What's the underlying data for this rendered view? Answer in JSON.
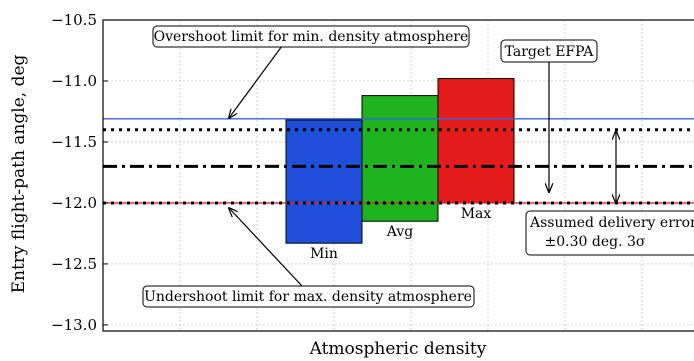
{
  "chart_data": {
    "type": "bar",
    "title": "",
    "xlabel": "Atmospheric density",
    "ylabel": "Entry flight-path angle, deg",
    "ylim": [
      -13.05,
      -10.5
    ],
    "yticks": [
      -10.5,
      -11.0,
      -11.5,
      -12.0,
      -12.5,
      -13.0
    ],
    "ytick_labels": [
      "−10.5",
      "−11.0",
      "−11.5",
      "−12.0",
      "−12.5",
      "−13.0"
    ],
    "grid": true,
    "bars": [
      {
        "name": "Min",
        "bottom": -12.33,
        "top": -11.32,
        "color": "#1f4fd8"
      },
      {
        "name": "Avg",
        "bottom": -12.15,
        "top": -11.12,
        "color": "#1fb31f"
      },
      {
        "name": "Max",
        "bottom": -12.0,
        "top": -10.98,
        "color": "#e61c1c"
      }
    ],
    "reference_lines": [
      {
        "id": "overshoot",
        "y": -11.31,
        "style": "solid",
        "color": "#3a62d8"
      },
      {
        "id": "upper_dispersion",
        "y": -11.4,
        "style": "dotted",
        "color": "#000000"
      },
      {
        "id": "target",
        "y": -11.7,
        "style": "dashdot",
        "color": "#000000"
      },
      {
        "id": "undershoot",
        "y": -12.0,
        "style": "solid",
        "color": "#d62728"
      },
      {
        "id": "lower_dispersion",
        "y": -12.0,
        "style": "dotted",
        "color": "#000000"
      }
    ],
    "annotations": {
      "overshoot": "Overshoot limit for min. density atmosphere",
      "target": "Target EFPA",
      "undershoot": "Undershoot limit for max. density atmosphere",
      "delivery_line1": "Assumed delivery error",
      "delivery_line2": "±0.30 deg. 3σ"
    }
  }
}
